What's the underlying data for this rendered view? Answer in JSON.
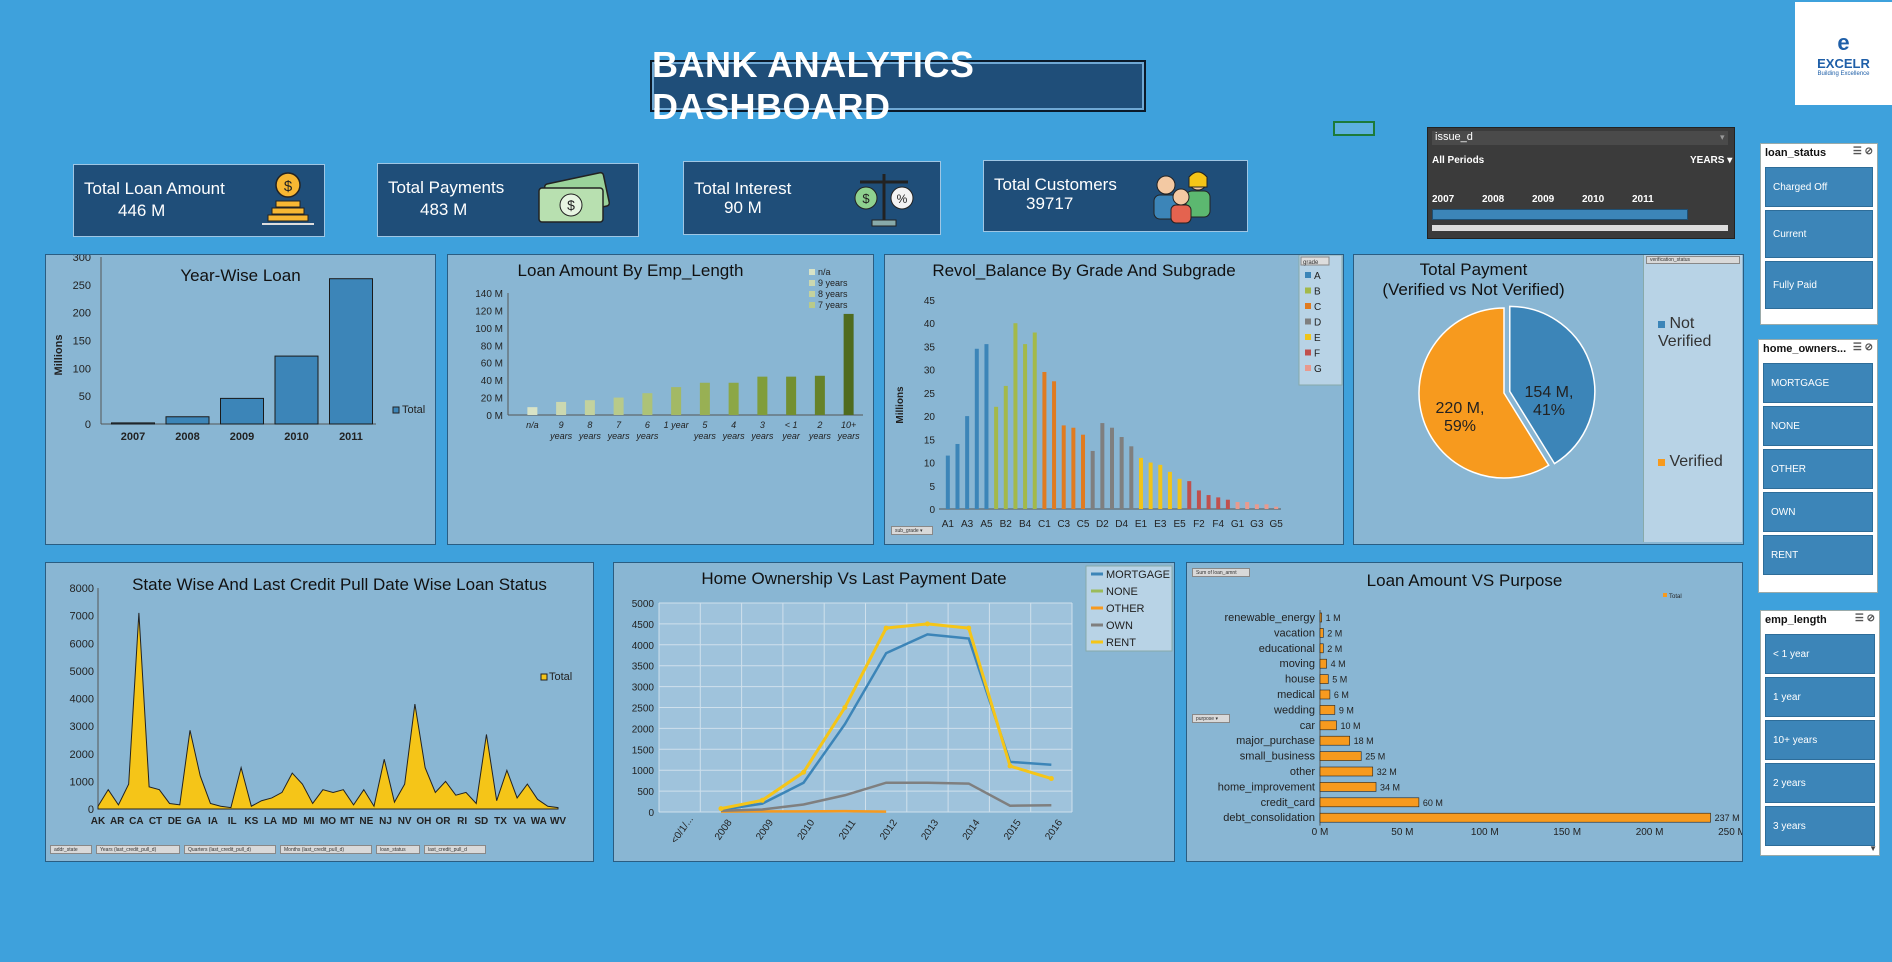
{
  "title": "BANK ANALYTICS DASHBOARD",
  "logo": {
    "mark": "e",
    "brand": "EXCELR",
    "tagline": "Building Excellence"
  },
  "kpis": [
    {
      "label": "Total Loan Amount",
      "value": "446 M",
      "icon": "coins-icon"
    },
    {
      "label": "Total Payments",
      "value": "483 M",
      "icon": "cash-icon"
    },
    {
      "label": "Total Interest",
      "value": "90 M",
      "icon": "scale-icon"
    },
    {
      "label": "Total Customers",
      "value": "39717",
      "icon": "people-icon"
    }
  ],
  "timeline": {
    "field": "issue_d",
    "period": "All Periods",
    "unit": "YEARS",
    "years": [
      "2007",
      "2008",
      "2009",
      "2010",
      "2011"
    ]
  },
  "slicers": {
    "loan_status": {
      "title": "loan_status",
      "items": [
        "Charged Off",
        "Current",
        "Fully Paid"
      ]
    },
    "home_ownership": {
      "title": "home_owners...",
      "items": [
        "MORTGAGE",
        "NONE",
        "OTHER",
        "OWN",
        "RENT"
      ]
    },
    "emp_length": {
      "title": "emp_length",
      "items": [
        "< 1 year",
        "1 year",
        "10+ years",
        "2 years",
        "3 years"
      ]
    }
  },
  "year_wise": {
    "title": "Year-Wise Loan",
    "ylabel": "Millions",
    "legend": "Total",
    "yticks": [
      "0",
      "50",
      "100",
      "150",
      "200",
      "250",
      "300"
    ]
  },
  "emp_length_chart": {
    "title": "Loan Amount  By Emp_Length",
    "yticks": [
      "0 M",
      "20 M",
      "40 M",
      "60 M",
      "80 M",
      "100 M",
      "120 M",
      "140 M"
    ],
    "legend": [
      "n/a",
      "9 years",
      "8 years",
      "7 years"
    ],
    "xlabels": [
      [
        "n/a",
        ""
      ],
      [
        "9",
        "years"
      ],
      [
        "8",
        "years"
      ],
      [
        "7",
        "years"
      ],
      [
        "6",
        "years"
      ],
      [
        "1 year",
        ""
      ],
      [
        "5",
        "years"
      ],
      [
        "4",
        "years"
      ],
      [
        "3",
        "years"
      ],
      [
        "< 1",
        "year"
      ],
      [
        "2",
        "years"
      ],
      [
        "10+",
        "years"
      ]
    ]
  },
  "revol": {
    "title": "Revol_Balance  By Grade And Subgrade",
    "ylabel": "Millions",
    "yticks": [
      "0",
      "5",
      "10",
      "15",
      "20",
      "25",
      "30",
      "35",
      "40",
      "45"
    ],
    "legend_title": "grade",
    "legend": [
      "A",
      "B",
      "C",
      "D",
      "E",
      "F",
      "G"
    ],
    "xlabels": [
      "A1",
      "A3",
      "A5",
      "B2",
      "B4",
      "C1",
      "C3",
      "C5",
      "D2",
      "D4",
      "E1",
      "E3",
      "E5",
      "F2",
      "F4",
      "G1",
      "G3",
      "G5"
    ],
    "filter_btn": "sub_grade"
  },
  "pie": {
    "title1": "Total Payment",
    "title2": "(Verified vs Not Verified)",
    "slice_not": "154 M,\n41%",
    "slice_ver": "220 M,\n59%",
    "legend_not": "Not Verified",
    "legend_ver": "Verified",
    "filter_btn": "verification_status"
  },
  "state": {
    "title": "State Wise And Last Credit Pull Date Wise Loan Status",
    "legend": "Total",
    "yticks": [
      "0",
      "1000",
      "2000",
      "3000",
      "4000",
      "5000",
      "6000",
      "7000",
      "8000"
    ],
    "xlabels": [
      "AK",
      "AR",
      "CA",
      "CT",
      "DE",
      "GA",
      "IA",
      "IL",
      "KS",
      "LA",
      "MD",
      "MI",
      "MO",
      "MT",
      "NE",
      "NJ",
      "NV",
      "OH",
      "OR",
      "RI",
      "SD",
      "TX",
      "VA",
      "WA",
      "WV"
    ],
    "filters": [
      "addr_state",
      "Years (last_credit_pull_d)",
      "Quarters (last_credit_pull_d)",
      "Months (last_credit_pull_d)",
      "loan_status",
      "last_credit_pull_d"
    ]
  },
  "home": {
    "title": "Home Ownership Vs Last Payment Date",
    "yticks": [
      "0",
      "500",
      "1000",
      "1500",
      "2000",
      "2500",
      "3000",
      "3500",
      "4000",
      "4500",
      "5000"
    ],
    "xlabels": [
      "<0/1/...",
      "2008",
      "2009",
      "2010",
      "2011",
      "2012",
      "2013",
      "2014",
      "2015",
      "2016"
    ],
    "legend": [
      "MORTGAGE",
      "NONE",
      "OTHER",
      "OWN",
      "RENT"
    ]
  },
  "purpose": {
    "title": "Loan Amount  VS Purpose",
    "legend": "Total",
    "filter_sum": "Sum of loan_amnt",
    "filter_btn": "purpose",
    "xticks": [
      "0 M",
      "50 M",
      "100 M",
      "150 M",
      "200 M",
      "250 M"
    ]
  },
  "colors": {
    "background": "#3ea1dc",
    "panel": "#89b6d3",
    "dark": "#1f4e79",
    "bar": "#3c85b8",
    "orange": "#f79a1e",
    "yellow": "#f5c518"
  },
  "chart_data": [
    {
      "type": "bar",
      "title": "Year-Wise Loan",
      "categories": [
        "2007",
        "2008",
        "2009",
        "2010",
        "2011"
      ],
      "values": [
        2,
        13,
        46,
        122,
        261
      ],
      "ylabel": "Millions",
      "ylim": [
        0,
        300
      ],
      "legend": "top-right"
    },
    {
      "type": "bar",
      "title": "Loan Amount  By Emp_Length",
      "categories": [
        "n/a",
        "9 years",
        "8 years",
        "7 years",
        "6 years",
        "1 year",
        "5 years",
        "4 years",
        "3 years",
        "< 1 year",
        "2 years",
        "10+ years"
      ],
      "values": [
        9,
        15,
        17,
        20,
        25,
        32,
        37,
        37,
        44,
        44,
        45,
        116
      ],
      "ylim": [
        0,
        140
      ],
      "unit": "M"
    },
    {
      "type": "bar",
      "title": "Revol_Balance  By Grade And Subgrade",
      "categories": [
        "A1",
        "A2",
        "A3",
        "A4",
        "A5",
        "B1",
        "B2",
        "B3",
        "B4",
        "B5",
        "C1",
        "C2",
        "C3",
        "C4",
        "C5",
        "D1",
        "D2",
        "D3",
        "D4",
        "D5",
        "E1",
        "E2",
        "E3",
        "E4",
        "E5",
        "F1",
        "F2",
        "F3",
        "F4",
        "F5",
        "G1",
        "G2",
        "G3",
        "G4",
        "G5"
      ],
      "values": [
        11.5,
        14,
        20,
        34.5,
        35.5,
        22,
        26.5,
        40,
        35.5,
        38,
        29.5,
        27.5,
        18,
        17.5,
        16,
        12.5,
        18.5,
        17.5,
        15.5,
        13.5,
        11,
        10,
        9.5,
        8,
        6.5,
        6,
        4,
        3,
        2.5,
        2,
        1.5,
        1.5,
        1,
        1,
        0.5
      ],
      "grades": [
        "A",
        "A",
        "A",
        "A",
        "A",
        "B",
        "B",
        "B",
        "B",
        "B",
        "C",
        "C",
        "C",
        "C",
        "C",
        "D",
        "D",
        "D",
        "D",
        "D",
        "E",
        "E",
        "E",
        "E",
        "E",
        "F",
        "F",
        "F",
        "F",
        "F",
        "G",
        "G",
        "G",
        "G",
        "G"
      ],
      "ylabel": "Millions",
      "ylim": [
        0,
        45
      ]
    },
    {
      "type": "pie",
      "title": "Total Payment (Verified vs Not Verified)",
      "labels": [
        "Not Verified",
        "Verified"
      ],
      "values": [
        154,
        220
      ],
      "percent": [
        41,
        59
      ]
    },
    {
      "type": "area",
      "title": "State Wise And Last Credit Pull Date Wise Loan Status",
      "values": [
        100,
        700,
        150,
        900,
        7100,
        800,
        700,
        200,
        150,
        2850,
        1200,
        200,
        100,
        50,
        1500,
        100,
        300,
        400,
        600,
        1300,
        900,
        200,
        700,
        600,
        700,
        150,
        700,
        100,
        1800,
        250,
        900,
        3800,
        1500,
        600,
        1000,
        500,
        600,
        200,
        2700,
        300,
        1400,
        400,
        900,
        350,
        100,
        50
      ],
      "ylim": [
        0,
        8000
      ],
      "legend": "right"
    },
    {
      "type": "line",
      "title": "Home Ownership Vs Last Payment Date",
      "x": [
        "2008",
        "2009",
        "2010",
        "2011",
        "2012",
        "2013",
        "2014",
        "2015",
        "2016"
      ],
      "series": [
        {
          "name": "MORTGAGE",
          "values": [
            50,
            200,
            700,
            2100,
            3800,
            4250,
            4150,
            1200,
            1130
          ]
        },
        {
          "name": "NONE",
          "values": [
            null,
            null,
            null,
            null,
            null,
            null,
            null,
            null,
            null
          ]
        },
        {
          "name": "OTHER",
          "values": [
            10,
            15,
            15,
            20,
            10,
            null,
            null,
            null,
            null
          ]
        },
        {
          "name": "OWN",
          "values": [
            30,
            60,
            180,
            400,
            700,
            700,
            680,
            150,
            160
          ]
        },
        {
          "name": "RENT",
          "values": [
            80,
            280,
            950,
            2500,
            4400,
            4500,
            4400,
            1100,
            800
          ]
        }
      ],
      "ylim": [
        0,
        5000
      ]
    },
    {
      "type": "bar",
      "orientation": "horizontal",
      "title": "Loan Amount  VS Purpose",
      "categories": [
        "renewable_energy",
        "vacation",
        "educational",
        "moving",
        "house",
        "medical",
        "wedding",
        "car",
        "major_purchase",
        "small_business",
        "other",
        "home_improvement",
        "credit_card",
        "debt_consolidation"
      ],
      "values": [
        1,
        2,
        2,
        4,
        5,
        6,
        9,
        10,
        18,
        25,
        32,
        34,
        60,
        237
      ],
      "labels": [
        "1 M",
        "2 M",
        "2 M",
        "4 M",
        "5 M",
        "6 M",
        "9 M",
        "10 M",
        "18 M",
        "25 M",
        "32 M",
        "34 M",
        "60 M",
        "237 M"
      ],
      "xlim": [
        0,
        250
      ]
    }
  ]
}
